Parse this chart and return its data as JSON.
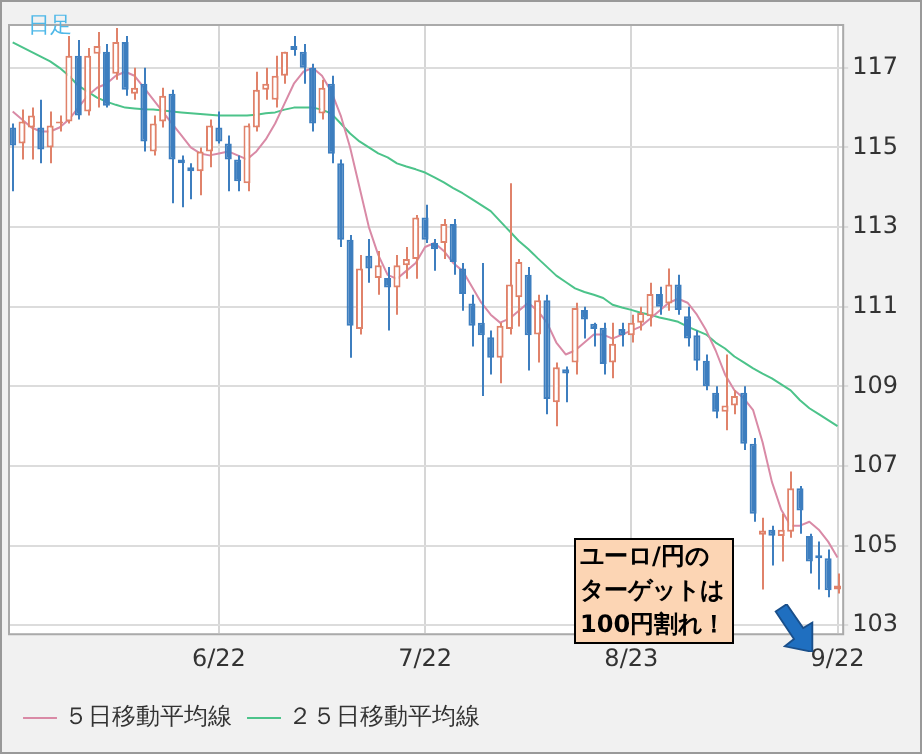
{
  "chart_data": {
    "type": "candlestick",
    "categories": [
      null,
      null,
      null,
      null,
      null,
      null,
      null,
      null,
      null,
      null,
      null,
      null,
      null,
      null,
      null,
      null,
      null,
      null,
      null,
      null,
      null,
      null,
      "6/22",
      null,
      null,
      null,
      null,
      null,
      null,
      null,
      null,
      null,
      null,
      null,
      null,
      null,
      null,
      null,
      null,
      null,
      null,
      null,
      null,
      null,
      "7/22",
      null,
      null,
      null,
      null,
      null,
      null,
      null,
      null,
      null,
      null,
      null,
      null,
      null,
      null,
      null,
      null,
      null,
      null,
      null,
      null,
      null,
      "8/23",
      null,
      null,
      null,
      null,
      null,
      null,
      null,
      null,
      null,
      null,
      null,
      null,
      null,
      null,
      null,
      null,
      null,
      null,
      null,
      null,
      null,
      "9/22"
    ],
    "ohlc": [
      [
        115.5,
        115.6,
        113.9,
        115.05
      ],
      [
        115.1,
        115.95,
        114.7,
        115.65
      ],
      [
        115.5,
        116.0,
        114.7,
        115.8
      ],
      [
        115.5,
        116.2,
        114.6,
        114.95
      ],
      [
        115.0,
        115.9,
        114.6,
        115.55
      ],
      [
        115.6,
        115.8,
        115.4,
        115.65
      ],
      [
        115.65,
        117.8,
        115.6,
        117.3
      ],
      [
        117.3,
        117.7,
        115.7,
        115.8
      ],
      [
        115.9,
        117.5,
        115.8,
        117.3
      ],
      [
        117.35,
        117.9,
        116.0,
        117.55
      ],
      [
        117.4,
        117.6,
        116.0,
        116.05
      ],
      [
        116.85,
        118.0,
        116.7,
        117.65
      ],
      [
        117.65,
        117.8,
        116.3,
        116.45
      ],
      [
        116.35,
        117.0,
        116.2,
        116.5
      ],
      [
        116.6,
        117.0,
        114.9,
        115.15
      ],
      [
        114.9,
        115.8,
        114.8,
        115.6
      ],
      [
        115.65,
        116.5,
        115.5,
        116.3
      ],
      [
        116.35,
        116.45,
        113.6,
        114.7
      ],
      [
        114.7,
        114.8,
        113.5,
        114.6
      ],
      [
        114.5,
        114.6,
        113.7,
        114.4
      ],
      [
        114.4,
        115.0,
        113.8,
        114.9
      ],
      [
        114.9,
        115.7,
        114.5,
        115.55
      ],
      [
        115.5,
        115.9,
        115.1,
        115.15
      ],
      [
        115.1,
        115.3,
        113.9,
        114.7
      ],
      [
        114.7,
        114.8,
        113.9,
        114.15
      ],
      [
        114.1,
        115.6,
        113.9,
        115.55
      ],
      [
        115.5,
        116.9,
        115.4,
        116.45
      ],
      [
        116.45,
        117.0,
        116.2,
        116.6
      ],
      [
        116.2,
        117.3,
        116.0,
        116.8
      ],
      [
        116.8,
        117.4,
        116.6,
        117.4
      ],
      [
        117.55,
        117.8,
        117.3,
        117.45
      ],
      [
        117.4,
        117.6,
        116.6,
        117.0
      ],
      [
        117.0,
        117.1,
        115.4,
        115.6
      ],
      [
        115.85,
        116.7,
        115.7,
        116.5
      ],
      [
        116.6,
        116.8,
        114.6,
        114.84
      ],
      [
        114.6,
        114.7,
        112.5,
        112.68
      ],
      [
        112.68,
        112.8,
        109.72,
        110.52
      ],
      [
        110.44,
        112.3,
        110.3,
        111.96
      ],
      [
        112.28,
        112.7,
        111.6,
        111.96
      ],
      [
        111.72,
        112.4,
        111.3,
        112.04
      ],
      [
        111.72,
        112.0,
        110.4,
        111.48
      ],
      [
        111.48,
        112.3,
        110.8,
        112.04
      ],
      [
        112.04,
        112.5,
        111.7,
        112.2
      ],
      [
        112.2,
        113.3,
        111.7,
        113.24
      ],
      [
        113.24,
        113.56,
        112.6,
        112.68
      ],
      [
        112.6,
        112.7,
        111.9,
        112.44
      ],
      [
        112.6,
        113.2,
        112.2,
        113.08
      ],
      [
        113.08,
        113.2,
        111.8,
        112.12
      ],
      [
        111.96,
        112.1,
        110.9,
        111.32
      ],
      [
        111.08,
        111.3,
        110.0,
        110.52
      ],
      [
        110.6,
        112.1,
        108.76,
        110.28
      ],
      [
        110.23,
        110.4,
        109.3,
        109.72
      ],
      [
        109.72,
        110.6,
        109.08,
        110.52
      ],
      [
        110.44,
        114.1,
        110.3,
        111.56
      ],
      [
        111.24,
        112.2,
        110.5,
        112.12
      ],
      [
        111.8,
        112.0,
        109.4,
        110.28
      ],
      [
        110.3,
        111.3,
        109.6,
        111.16
      ],
      [
        111.16,
        111.3,
        108.3,
        108.68
      ],
      [
        108.6,
        109.6,
        108.0,
        109.48
      ],
      [
        109.43,
        109.5,
        108.6,
        109.32
      ],
      [
        109.6,
        111.1,
        109.3,
        110.97
      ],
      [
        110.92,
        111.0,
        110.2,
        110.68
      ],
      [
        110.57,
        110.6,
        110.0,
        110.44
      ],
      [
        110.47,
        110.6,
        109.3,
        109.56
      ],
      [
        109.6,
        110.6,
        109.2,
        110.07
      ],
      [
        110.44,
        110.6,
        110.0,
        110.28
      ],
      [
        110.28,
        110.8,
        110.1,
        110.6
      ],
      [
        110.6,
        111.0,
        110.4,
        110.84
      ],
      [
        110.76,
        111.6,
        110.5,
        111.32
      ],
      [
        111.32,
        111.5,
        110.8,
        111.0
      ],
      [
        111.08,
        111.96,
        110.9,
        111.56
      ],
      [
        111.56,
        111.8,
        110.8,
        110.92
      ],
      [
        110.76,
        111.0,
        110.0,
        110.2
      ],
      [
        110.28,
        110.4,
        109.4,
        109.64
      ],
      [
        109.64,
        109.8,
        108.9,
        109.0
      ],
      [
        108.84,
        109.0,
        108.2,
        108.36
      ],
      [
        108.36,
        109.8,
        107.9,
        108.52
      ],
      [
        108.52,
        108.9,
        108.3,
        108.76
      ],
      [
        108.84,
        109.0,
        107.4,
        107.56
      ],
      [
        107.56,
        107.7,
        105.6,
        105.8
      ],
      [
        105.27,
        105.7,
        103.9,
        105.38
      ],
      [
        105.4,
        105.5,
        104.5,
        105.25
      ],
      [
        105.24,
        105.8,
        104.6,
        105.4
      ],
      [
        105.35,
        106.86,
        105.2,
        106.44
      ],
      [
        106.44,
        106.5,
        105.3,
        105.88
      ],
      [
        105.24,
        105.3,
        104.3,
        104.6
      ],
      [
        104.76,
        105.1,
        103.9,
        104.68
      ],
      [
        104.68,
        104.9,
        103.7,
        103.88
      ],
      [
        103.9,
        104.3,
        103.8,
        104.0
      ]
    ],
    "series": [
      {
        "type": "line",
        "name": "５日移動平均線",
        "color": "#d98aa6",
        "values": [
          115.9,
          115.7,
          115.5,
          115.4,
          115.4,
          115.5,
          115.7,
          116.0,
          116.3,
          116.5,
          116.6,
          116.8,
          116.9,
          116.8,
          116.5,
          116.2,
          115.9,
          115.6,
          115.3,
          115.0,
          114.85,
          114.8,
          114.85,
          114.9,
          114.8,
          114.7,
          114.9,
          115.2,
          115.6,
          116.1,
          116.6,
          116.9,
          117.0,
          116.8,
          116.4,
          115.8,
          115.0,
          114.0,
          113.0,
          112.3,
          111.8,
          111.7,
          111.9,
          112.1,
          112.5,
          112.6,
          112.4,
          112.1,
          111.9,
          111.5,
          111.1,
          110.8,
          110.6,
          110.7,
          110.9,
          111.1,
          110.9,
          110.6,
          110.1,
          109.8,
          109.9,
          110.1,
          110.3,
          110.3,
          110.2,
          110.3,
          110.4,
          110.5,
          110.7,
          110.9,
          111.1,
          111.2,
          111.1,
          110.8,
          110.4,
          109.9,
          109.3,
          108.9,
          108.7,
          108.4,
          107.6,
          106.6,
          105.9,
          105.5,
          105.5,
          105.6,
          105.4,
          105.1,
          104.7
        ]
      },
      {
        "type": "line",
        "name": "２５日移動平均線",
        "color": "#4cc38a",
        "values": [
          117.64,
          117.52,
          117.4,
          117.28,
          117.16,
          117.0,
          116.8,
          116.55,
          116.4,
          116.25,
          116.15,
          116.07,
          116.0,
          115.98,
          115.96,
          115.95,
          115.93,
          115.9,
          115.88,
          115.86,
          115.84,
          115.82,
          115.8,
          115.8,
          115.8,
          115.8,
          115.82,
          115.86,
          115.88,
          115.95,
          116.0,
          116.0,
          116.0,
          115.95,
          115.85,
          115.6,
          115.35,
          115.15,
          115.0,
          114.85,
          114.75,
          114.6,
          114.52,
          114.45,
          114.37,
          114.25,
          114.12,
          113.98,
          113.85,
          113.7,
          113.55,
          113.4,
          113.15,
          112.9,
          112.65,
          112.45,
          112.22,
          112.0,
          111.78,
          111.62,
          111.46,
          111.37,
          111.3,
          111.22,
          111.05,
          110.98,
          110.92,
          110.85,
          110.8,
          110.73,
          110.68,
          110.62,
          110.5,
          110.4,
          110.3,
          110.1,
          109.95,
          109.75,
          109.6,
          109.45,
          109.32,
          109.2,
          109.05,
          108.9,
          108.65,
          108.45,
          108.3,
          108.15,
          108.0
        ]
      }
    ],
    "ylim": [
      102.8,
      118.1
    ],
    "yticks": [
      103,
      105,
      107,
      109,
      111,
      113,
      115,
      117
    ],
    "grid": true,
    "legend": "bottom left",
    "annotations": [
      "日足",
      "ユーロ/円のターゲットは100円割れ！"
    ]
  }
}
